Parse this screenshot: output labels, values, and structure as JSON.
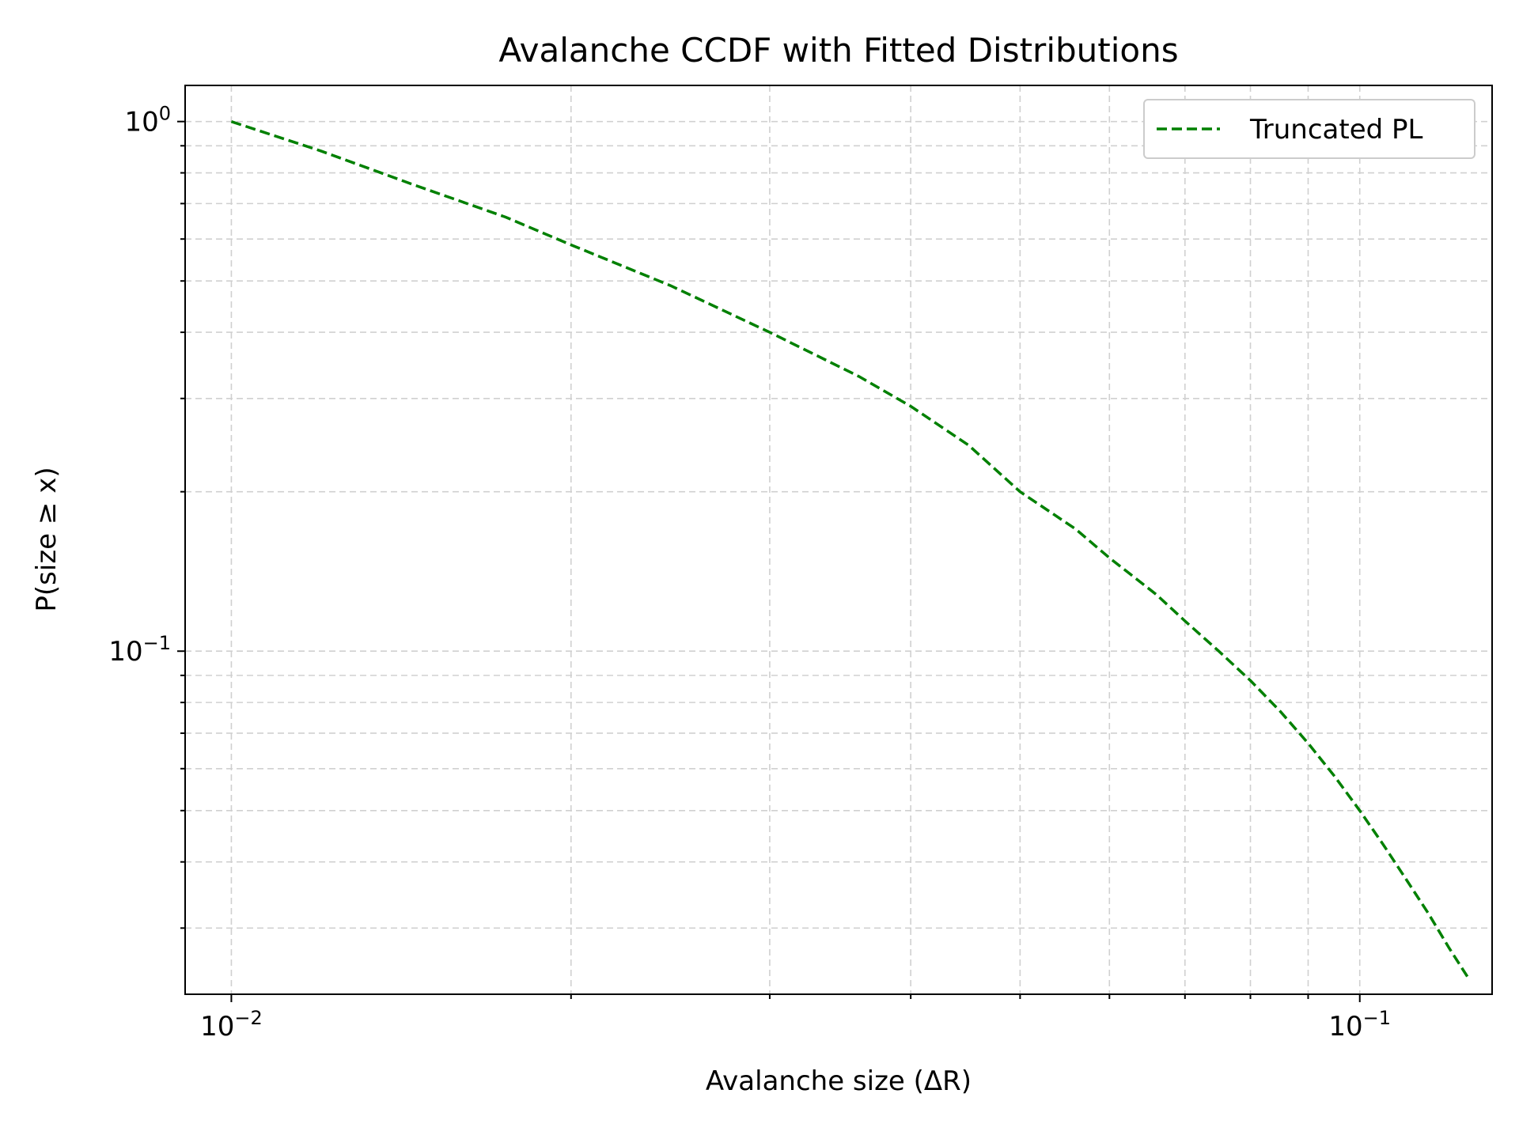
{
  "chart_data": {
    "type": "line",
    "title": "Avalanche CCDF with Fitted Distributions",
    "xlabel": "Avalanche size (ΔR)",
    "ylabel": "P(size ≥ x)",
    "xscale": "log",
    "yscale": "log",
    "xlim": [
      0.0091,
      0.131
    ],
    "ylim": [
      0.0225,
      1.17
    ],
    "grid": true,
    "legend_position": "top-right",
    "x_ticks": [
      {
        "value": 0.01,
        "base": "10",
        "exp": "−2"
      },
      {
        "value": 0.1,
        "base": "10",
        "exp": "−1"
      }
    ],
    "y_ticks": [
      {
        "value": 1,
        "base": "10",
        "exp": "0"
      },
      {
        "value": 0.1,
        "base": "10",
        "exp": "−1"
      }
    ],
    "series": [
      {
        "name": "Truncated PL",
        "color": "#008000",
        "linestyle": "dashed",
        "x": [
          0.01,
          0.012,
          0.0145,
          0.0175,
          0.02,
          0.0245,
          0.03,
          0.036,
          0.04,
          0.045,
          0.05,
          0.056,
          0.06,
          0.066,
          0.07,
          0.075,
          0.08,
          0.085,
          0.09,
          0.095,
          0.1,
          0.105,
          0.11,
          0.115,
          0.12,
          0.125
        ],
        "y": [
          1.0,
          0.88,
          0.76,
          0.66,
          0.585,
          0.49,
          0.4,
          0.33,
          0.29,
          0.245,
          0.2,
          0.17,
          0.15,
          0.128,
          0.114,
          0.1,
          0.088,
          0.077,
          0.067,
          0.058,
          0.05,
          0.043,
          0.037,
          0.032,
          0.0275,
          0.024
        ]
      }
    ]
  }
}
